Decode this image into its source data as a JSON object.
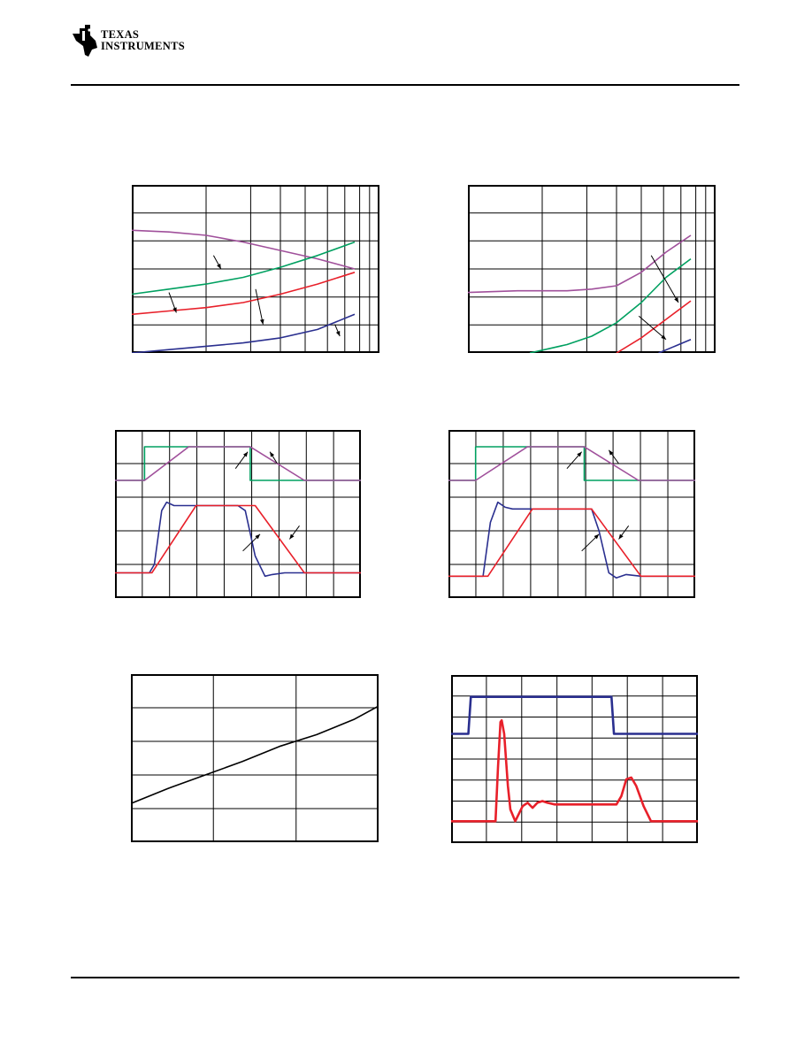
{
  "header": {
    "brand_line1": "TEXAS",
    "brand_line2": "INSTRUMENTS",
    "logo_icon": "ti-logo-icon"
  },
  "colors": {
    "purple": "#a0509b",
    "green": "#00a060",
    "red": "#e8202a",
    "blue": "#2a2f8f",
    "black": "#000000"
  },
  "chart_data": [
    {
      "type": "line",
      "grid": "log-x",
      "series": [
        {
          "color": "purple",
          "x": [
            0,
            0.15,
            0.3,
            0.45,
            0.6,
            0.75,
            0.9
          ],
          "y": [
            0.27,
            0.28,
            0.3,
            0.34,
            0.39,
            0.44,
            0.5
          ]
        },
        {
          "color": "green",
          "x": [
            0,
            0.15,
            0.3,
            0.45,
            0.6,
            0.75,
            0.9
          ],
          "y": [
            0.65,
            0.62,
            0.59,
            0.55,
            0.49,
            0.42,
            0.34
          ]
        },
        {
          "color": "red",
          "x": [
            0,
            0.15,
            0.3,
            0.45,
            0.6,
            0.75,
            0.9
          ],
          "y": [
            0.77,
            0.75,
            0.73,
            0.7,
            0.65,
            0.59,
            0.52
          ]
        },
        {
          "color": "blue",
          "x": [
            0,
            0.15,
            0.3,
            0.45,
            0.6,
            0.75,
            0.9
          ],
          "y": [
            1.0,
            0.98,
            0.96,
            0.94,
            0.91,
            0.86,
            0.77
          ]
        }
      ],
      "annotations": [
        "arrow",
        "arrow",
        "arrow",
        "arrow"
      ]
    },
    {
      "type": "line",
      "grid": "log-x",
      "series": [
        {
          "color": "purple",
          "x": [
            0,
            0.2,
            0.4,
            0.5,
            0.6,
            0.7,
            0.8,
            0.9
          ],
          "y": [
            0.64,
            0.63,
            0.63,
            0.62,
            0.6,
            0.52,
            0.4,
            0.3
          ]
        },
        {
          "color": "green",
          "x": [
            0.25,
            0.4,
            0.5,
            0.6,
            0.7,
            0.8,
            0.9
          ],
          "y": [
            1.0,
            0.95,
            0.9,
            0.82,
            0.7,
            0.55,
            0.44
          ]
        },
        {
          "color": "red",
          "x": [
            0.6,
            0.7,
            0.8,
            0.9
          ],
          "y": [
            1.0,
            0.91,
            0.8,
            0.69
          ]
        },
        {
          "color": "blue",
          "x": [
            0.77,
            0.9
          ],
          "y": [
            1.0,
            0.92
          ]
        }
      ],
      "annotations": [
        "arrow",
        "arrow"
      ]
    },
    {
      "type": "line",
      "grid": "linear",
      "series": [
        {
          "color": "green",
          "kind": "trace",
          "points": [
            [
              0,
              0.3
            ],
            [
              0.12,
              0.3
            ],
            [
              0.12,
              0.1
            ],
            [
              0.55,
              0.1
            ],
            [
              0.55,
              0.3
            ],
            [
              1,
              0.3
            ]
          ]
        },
        {
          "color": "purple",
          "kind": "trace",
          "points": [
            [
              0,
              0.3
            ],
            [
              0.12,
              0.3
            ],
            [
              0.3,
              0.1
            ],
            [
              0.55,
              0.1
            ],
            [
              0.77,
              0.3
            ],
            [
              1,
              0.3
            ]
          ]
        },
        {
          "color": "blue",
          "kind": "trace",
          "points": [
            [
              0,
              0.85
            ],
            [
              0.14,
              0.85
            ],
            [
              0.16,
              0.8
            ],
            [
              0.19,
              0.48
            ],
            [
              0.21,
              0.43
            ],
            [
              0.24,
              0.45
            ],
            [
              0.27,
              0.45
            ],
            [
              0.5,
              0.45
            ],
            [
              0.53,
              0.48
            ],
            [
              0.57,
              0.75
            ],
            [
              0.61,
              0.87
            ],
            [
              0.64,
              0.86
            ],
            [
              0.69,
              0.85
            ],
            [
              1,
              0.85
            ]
          ]
        },
        {
          "color": "red",
          "kind": "trace",
          "points": [
            [
              0,
              0.85
            ],
            [
              0.15,
              0.85
            ],
            [
              0.33,
              0.45
            ],
            [
              0.57,
              0.45
            ],
            [
              0.77,
              0.85
            ],
            [
              1,
              0.85
            ]
          ]
        }
      ],
      "annotations": [
        "arrow",
        "arrow",
        "arrow",
        "arrow"
      ]
    },
    {
      "type": "line",
      "grid": "linear",
      "series": [
        {
          "color": "green",
          "kind": "trace",
          "points": [
            [
              0,
              0.3
            ],
            [
              0.11,
              0.3
            ],
            [
              0.11,
              0.1
            ],
            [
              0.55,
              0.1
            ],
            [
              0.55,
              0.3
            ],
            [
              1,
              0.3
            ]
          ]
        },
        {
          "color": "purple",
          "kind": "trace",
          "points": [
            [
              0,
              0.3
            ],
            [
              0.11,
              0.3
            ],
            [
              0.32,
              0.1
            ],
            [
              0.55,
              0.1
            ],
            [
              0.77,
              0.3
            ],
            [
              1,
              0.3
            ]
          ]
        },
        {
          "color": "blue",
          "kind": "trace",
          "points": [
            [
              0,
              0.87
            ],
            [
              0.14,
              0.87
            ],
            [
              0.17,
              0.55
            ],
            [
              0.2,
              0.43
            ],
            [
              0.23,
              0.46
            ],
            [
              0.26,
              0.47
            ],
            [
              0.58,
              0.47
            ],
            [
              0.61,
              0.6
            ],
            [
              0.65,
              0.85
            ],
            [
              0.68,
              0.88
            ],
            [
              0.72,
              0.86
            ],
            [
              0.78,
              0.87
            ],
            [
              1,
              0.87
            ]
          ]
        },
        {
          "color": "red",
          "kind": "trace",
          "points": [
            [
              0,
              0.87
            ],
            [
              0.16,
              0.87
            ],
            [
              0.34,
              0.47
            ],
            [
              0.58,
              0.47
            ],
            [
              0.78,
              0.87
            ],
            [
              1,
              0.87
            ]
          ]
        }
      ],
      "annotations": [
        "arrow",
        "arrow",
        "arrow",
        "arrow"
      ]
    },
    {
      "type": "line",
      "grid": "linear",
      "series": [
        {
          "color": "black",
          "x": [
            0,
            0.15,
            0.3,
            0.45,
            0.6,
            0.75,
            0.9,
            1.0
          ],
          "y": [
            0.77,
            0.68,
            0.6,
            0.52,
            0.43,
            0.36,
            0.27,
            0.19
          ]
        }
      ]
    },
    {
      "type": "line",
      "grid": "linear",
      "series": [
        {
          "color": "blue",
          "kind": "trace",
          "points": [
            [
              0,
              0.35
            ],
            [
              0.07,
              0.35
            ],
            [
              0.08,
              0.13
            ],
            [
              0.65,
              0.13
            ],
            [
              0.66,
              0.35
            ],
            [
              1,
              0.35
            ]
          ]
        },
        {
          "color": "red",
          "kind": "trace",
          "points": [
            [
              0,
              0.87
            ],
            [
              0.18,
              0.87
            ],
            [
              0.19,
              0.55
            ],
            [
              0.2,
              0.28
            ],
            [
              0.205,
              0.27
            ],
            [
              0.215,
              0.35
            ],
            [
              0.23,
              0.66
            ],
            [
              0.24,
              0.8
            ],
            [
              0.26,
              0.87
            ],
            [
              0.27,
              0.84
            ],
            [
              0.29,
              0.78
            ],
            [
              0.31,
              0.76
            ],
            [
              0.33,
              0.79
            ],
            [
              0.35,
              0.76
            ],
            [
              0.37,
              0.75
            ],
            [
              0.39,
              0.76
            ],
            [
              0.42,
              0.77
            ],
            [
              0.67,
              0.77
            ],
            [
              0.69,
              0.72
            ],
            [
              0.71,
              0.62
            ],
            [
              0.73,
              0.61
            ],
            [
              0.75,
              0.66
            ],
            [
              0.78,
              0.78
            ],
            [
              0.81,
              0.87
            ],
            [
              1,
              0.87
            ]
          ]
        }
      ]
    }
  ]
}
